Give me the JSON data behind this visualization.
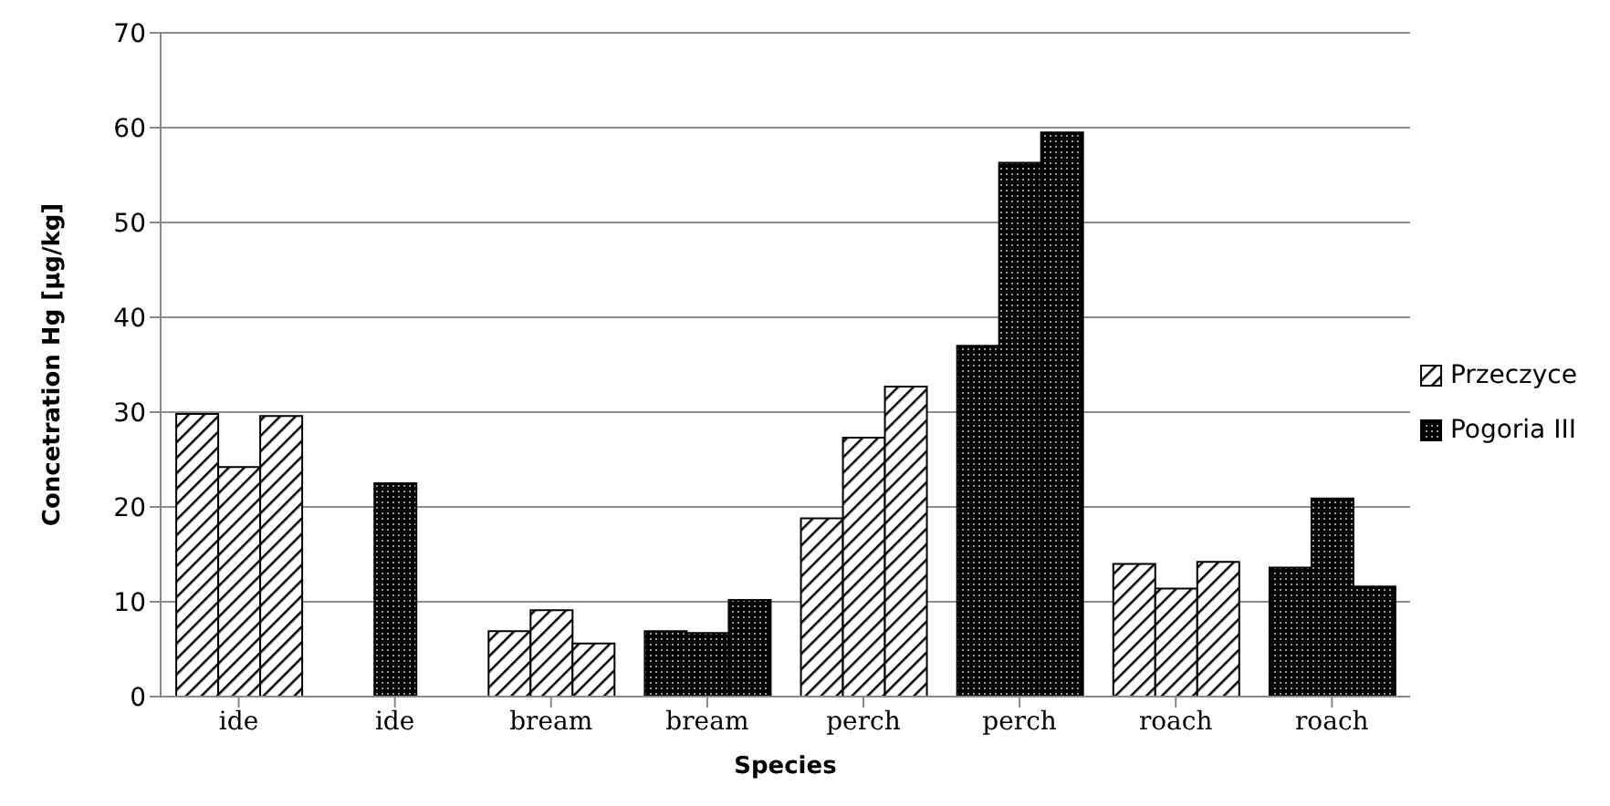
{
  "chart_data": {
    "type": "bar",
    "xlabel": "Species",
    "ylabel": "Concetration Hg [µg/kg]",
    "categories": [
      "ide",
      "ide",
      "bream",
      "bream",
      "perch",
      "perch",
      "roach",
      "roach"
    ],
    "series": [
      {
        "name": "Przeczyce",
        "color": "#000000",
        "values": [
          29.8,
          null,
          6.9,
          null,
          18.8,
          null,
          14.0,
          null
        ]
      },
      {
        "color": "#000000",
        "values": [
          24.2,
          null,
          9.1,
          null,
          27.3,
          null,
          11.4,
          null
        ]
      },
      {
        "color": "#000000",
        "values": [
          29.6,
          null,
          5.6,
          null,
          32.7,
          null,
          14.2,
          null
        ]
      },
      {
        "name": "Pogoria III",
        "color": "#000000",
        "values": [
          null,
          null,
          null,
          6.9,
          null,
          37.0,
          null,
          13.6
        ]
      },
      {
        "color": "#000000",
        "values": [
          null,
          22.5,
          null,
          6.7,
          null,
          56.3,
          null,
          20.9
        ]
      },
      {
        "color": "#000000",
        "values": [
          null,
          null,
          null,
          10.2,
          null,
          59.5,
          null,
          11.6
        ]
      }
    ],
    "ylim": [
      0,
      70
    ],
    "yticks": [
      0,
      10,
      20,
      30,
      40,
      50,
      60,
      70
    ],
    "grid": "y",
    "legend": "right"
  }
}
